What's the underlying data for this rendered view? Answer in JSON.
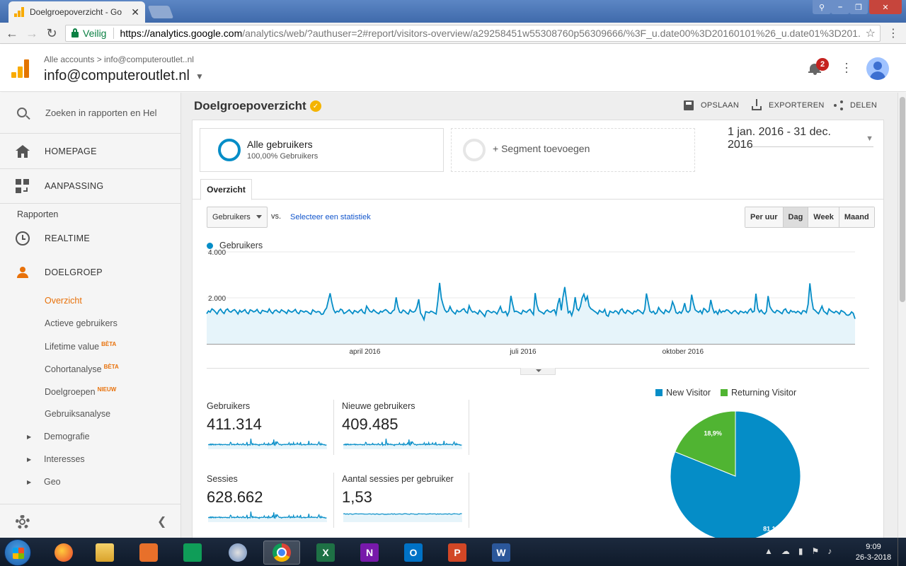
{
  "browser": {
    "tab_title": "Doelgroepoverzicht - Go",
    "secure_label": "Veilig",
    "url_domain": "https://analytics.google.com",
    "url_rest": "/analytics/web/?authuser=2#report/visitors-overview/a29258451w55308760p56309666/%3F_u.date00%3D20160101%26_u.date01%3D201..."
  },
  "header": {
    "breadcrumb": "Alle accounts > info@computeroutlet..nl",
    "account": "info@computeroutlet.nl",
    "notification_count": "2",
    "colors": {
      "ga_orange": "#f9ab00",
      "ga_dark_orange": "#e37400"
    }
  },
  "sidebar": {
    "search_placeholder": "Zoeken in rapporten en Hel",
    "items": [
      {
        "label": "HOMEPAGE",
        "icon": "home-icon"
      },
      {
        "label": "AANPASSING",
        "icon": "dashboard-icon"
      }
    ],
    "section_label": "Rapporten",
    "reports": [
      {
        "label": "REALTIME",
        "icon": "clock-icon"
      },
      {
        "label": "DOELGROEP",
        "icon": "person-icon"
      }
    ],
    "sub_items": [
      {
        "label": "Overzicht",
        "badge": ""
      },
      {
        "label": "Actieve gebruikers",
        "badge": ""
      },
      {
        "label": "Lifetime value",
        "badge": "BÈTA"
      },
      {
        "label": "Cohortanalyse",
        "badge": "BÈTA"
      },
      {
        "label": "Doelgroepen",
        "badge": "NIEUW"
      },
      {
        "label": "Gebruiksanalyse",
        "badge": ""
      }
    ],
    "expandable": [
      "Demografie",
      "Interesses",
      "Geo"
    ]
  },
  "main": {
    "title": "Doelgroepoverzicht",
    "actions": {
      "save": "OPSLAAN",
      "export": "EXPORTEREN",
      "share": "DELEN"
    },
    "segments": {
      "active_title": "Alle gebruikers",
      "active_sub": "100,00% Gebruikers",
      "add_label": "+ Segment toevoegen"
    },
    "date_range": "1 jan. 2016 - 31 dec. 2016",
    "tab": "Overzicht",
    "metric_select": "Gebruikers",
    "vs_label": "vs.",
    "select_stat": "Selecteer een statistiek",
    "granularity": [
      "Per uur",
      "Dag",
      "Week",
      "Maand"
    ],
    "granularity_selected": "Dag"
  },
  "chart_data": [
    {
      "type": "line",
      "series": [
        {
          "name": "Gebruikers",
          "color": "#058dc7"
        }
      ],
      "y_ticks": [
        "4.000",
        "2.000"
      ],
      "x_ticks": [
        "april 2016",
        "juli 2016",
        "oktober 2016"
      ],
      "ylim": [
        0,
        4000
      ],
      "x_range": [
        "2016-01-01",
        "2016-12-31"
      ],
      "grid": true,
      "values": [
        1310,
        1430,
        1380,
        1520,
        1470,
        1390,
        1300,
        1440,
        1510,
        1390,
        1320,
        1470,
        1520,
        1410,
        1380,
        1450,
        1490,
        1410,
        1300,
        1460,
        1380,
        1430,
        1490,
        1360,
        1310,
        1480,
        1450,
        1390,
        1420,
        1500,
        1370,
        1320,
        1460,
        1430,
        1410,
        1380,
        1520,
        1390,
        1320,
        1440,
        1470,
        1400,
        1360,
        1480,
        1430,
        1390,
        1320,
        1470,
        1410,
        1380,
        1430,
        1500,
        1360,
        1310,
        1450,
        1420,
        1380,
        1430,
        1400,
        1330,
        1290,
        1480,
        1420,
        1370,
        1410,
        1390,
        1280,
        1300,
        1460,
        1560,
        1890,
        2200,
        1810,
        1490,
        1350,
        1420,
        1390,
        1510,
        1470,
        1320,
        1360,
        1420,
        1480,
        1390,
        1310,
        1450,
        1410,
        1360,
        1440,
        1500,
        1370,
        1320,
        1640,
        1520,
        1410,
        1380,
        1480,
        1410,
        1350,
        1310,
        1420,
        1380,
        1450,
        1490,
        1430,
        1340,
        1320,
        1430,
        1480,
        2020,
        1610,
        1380,
        1350,
        1470,
        1420,
        1340,
        1300,
        1480,
        1400,
        1380,
        1430,
        1610,
        1940,
        1340,
        1220,
        1050,
        1400,
        1380,
        1350,
        1420,
        1390,
        1340,
        1300,
        1870,
        2650,
        1990,
        1700,
        1480,
        1380,
        1420,
        1620,
        1450,
        1370,
        1300,
        1460,
        1390,
        1410,
        1490,
        1530,
        1400,
        1340,
        1660,
        1470,
        1380,
        1410,
        1360,
        1300,
        1460,
        1380,
        1290,
        1190,
        1420,
        1450,
        1390,
        1350,
        1410,
        1380,
        1300,
        1460,
        1620,
        1380,
        1360,
        1410,
        1230,
        1410,
        2090,
        1730,
        1400,
        1420,
        1390,
        1340,
        1300,
        1460,
        1410,
        1370,
        1450,
        1500,
        1380,
        1270,
        2210,
        1690,
        1450,
        1400,
        1360,
        1300,
        1420,
        1470,
        1400,
        1380,
        1450,
        1480,
        1280,
        1730,
        1990,
        1460,
        2040,
        2470,
        1910,
        1350,
        1420,
        1230,
        1490,
        2030,
        1530,
        1450,
        1630,
        1990,
        2160,
        1890,
        2060,
        1640,
        1530,
        1480,
        1420,
        1370,
        1300,
        1460,
        1390,
        1370,
        1500,
        1250,
        1200,
        1420,
        1380,
        1350,
        1440,
        1400,
        1300,
        1470,
        1520,
        1380,
        1330,
        1460,
        1420,
        1360,
        1300,
        1420,
        1390,
        1480,
        1440,
        1370,
        1310,
        1500,
        2190,
        1800,
        1420,
        1360,
        1420,
        1300,
        1350,
        1580,
        1450,
        1380,
        1310,
        1480,
        1410,
        1370,
        1510,
        1830,
        1640,
        1360,
        1320,
        1400,
        1330,
        1480,
        1770,
        1430,
        1370,
        1460,
        2140,
        1760,
        1480,
        1420,
        1370,
        1450,
        1310,
        1540,
        1480,
        1380,
        1430,
        1910,
        1570,
        1350,
        1420,
        1290,
        1480,
        1360,
        1430,
        1400,
        1480,
        1460,
        1380,
        1320,
        1410,
        1450,
        1370,
        1300,
        1420,
        1390,
        1350,
        1410,
        1330,
        1460,
        1530,
        1380,
        1420,
        2180,
        1540,
        1380,
        1470,
        1360,
        1300,
        1410,
        2080,
        1620,
        1490,
        1390,
        1350,
        1460,
        1430,
        1370,
        1310,
        1470,
        1520,
        1380,
        1330,
        1460,
        1390,
        1410,
        1350,
        1420,
        1380,
        1300,
        1440,
        1430,
        1360,
        1720,
        2630,
        1960,
        1510,
        1460,
        1380,
        1310,
        1470,
        1640,
        1420,
        1360,
        1290,
        1520,
        1440,
        1390,
        1350,
        1420,
        1380,
        1300,
        1450,
        1410,
        1360,
        1260,
        1240,
        1280,
        1390,
        1330,
        1090
      ]
    },
    {
      "type": "line",
      "name": "spark-gebruikers",
      "label": "Gebruikers",
      "value": "411.314"
    },
    {
      "type": "line",
      "name": "spark-nieuwe-gebruikers",
      "label": "Nieuwe gebruikers",
      "value": "409.485"
    },
    {
      "type": "line",
      "name": "spark-sessies",
      "label": "Sessies",
      "value": "628.662"
    },
    {
      "type": "line",
      "name": "spark-sessies-per-gebruiker",
      "label": "Aantal sessies per gebruiker",
      "value": "1,53"
    },
    {
      "type": "pie",
      "categories": [
        "New Visitor",
        "Returning Visitor"
      ],
      "values": [
        81.1,
        18.9
      ],
      "data_labels": [
        "81,1%",
        "18,9%"
      ],
      "colors": [
        "#058dc7",
        "#50b432"
      ],
      "legend": "top"
    }
  ],
  "taskbar": {
    "time": "9:09",
    "date": "26-3-2018",
    "apps": [
      "firefox-icon",
      "explorer-icon",
      "media-icon",
      "sheets-icon",
      "other-icon",
      "chrome-icon",
      "excel-icon",
      "onenote-icon",
      "outlook-icon",
      "ppt-icon",
      "word-icon"
    ],
    "app_letters": {
      "excel-icon": "X",
      "onenote-icon": "N",
      "outlook-icon": "O",
      "ppt-icon": "P",
      "word-icon": "W"
    }
  }
}
